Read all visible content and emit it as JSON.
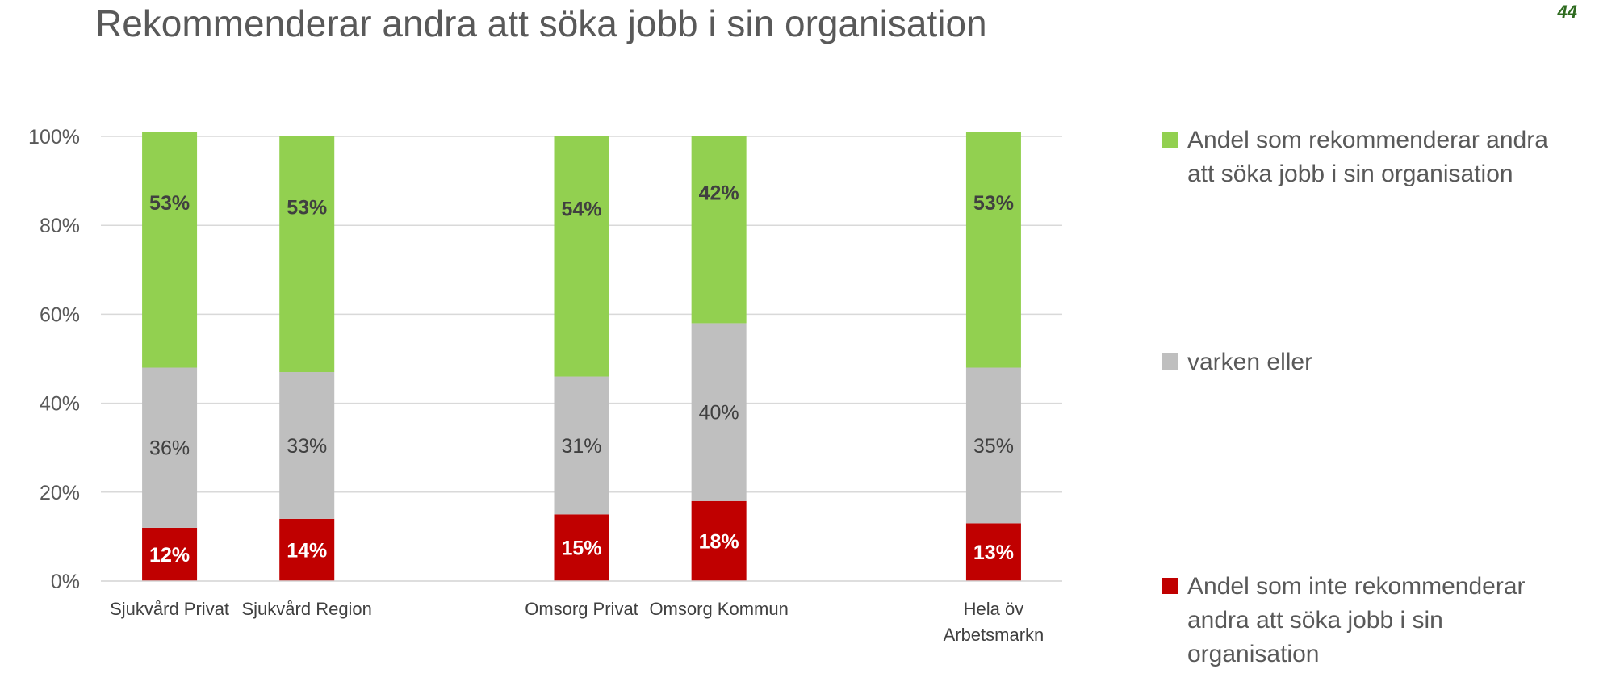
{
  "page": {
    "title": "Rekommenderar andra att söka jobb i sin organisation",
    "page_number": "44"
  },
  "legend": {
    "items": [
      {
        "label": "Andel som rekommenderar andra att söka jobb i sin organisation",
        "color": "#92d050"
      },
      {
        "label": "varken eller",
        "color": "#bfbfbf"
      },
      {
        "label": "Andel som inte  rekommenderar andra att söka jobb i sin organisation",
        "color": "#c00000"
      }
    ]
  },
  "chart_data": {
    "type": "bar",
    "stacked": true,
    "categories": [
      "Sjukvård Privat",
      "Sjukvård Region",
      "",
      "Omsorg Privat",
      "Omsorg Kommun",
      "",
      "Hela öv Arbetsmarkn"
    ],
    "series": [
      {
        "name": "Andel som inte  rekommenderar andra att söka jobb i sin organisation",
        "color": "#c00000",
        "values": [
          12,
          14,
          null,
          15,
          18,
          null,
          13
        ],
        "labels": [
          "12%",
          "14%",
          "",
          "15%",
          "18%",
          "",
          "13%"
        ]
      },
      {
        "name": "varken eller",
        "color": "#bfbfbf",
        "values": [
          36,
          33,
          null,
          31,
          40,
          null,
          35
        ],
        "labels": [
          "36%",
          "33%",
          "",
          "31%",
          "40%",
          "",
          "35%"
        ]
      },
      {
        "name": "Andel som rekommenderar andra att söka jobb i sin organisation",
        "color": "#92d050",
        "values": [
          53,
          53,
          null,
          54,
          42,
          null,
          53
        ],
        "labels": [
          "53%",
          "53%",
          "",
          "54%",
          "42%",
          "",
          "53%"
        ]
      }
    ],
    "ylim": [
      0,
      100
    ],
    "yticks": [
      "0%",
      "20%",
      "40%",
      "60%",
      "80%",
      "100%"
    ],
    "grid": true,
    "legend_position": "right",
    "xlabel": "",
    "ylabel": ""
  }
}
